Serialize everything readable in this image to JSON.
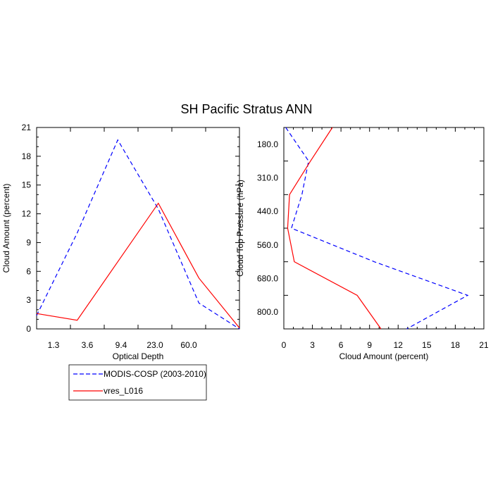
{
  "title": "SH Pacific Stratus ANN",
  "chart_data": [
    {
      "type": "line",
      "xlabel": "Optical Depth",
      "ylabel": "Cloud Amount (percent)",
      "ylim": [
        0,
        21
      ],
      "yticks": [
        "0",
        "3",
        "6",
        "9",
        "12",
        "15",
        "18",
        "21"
      ],
      "xtick_labels": [
        "1.3",
        "3.6",
        "9.4",
        "23.0",
        "60.0"
      ],
      "x_positions": [
        0,
        1,
        2,
        3,
        4,
        5,
        6
      ],
      "series": [
        {
          "name": "MODIS-COSP (2003-2010)",
          "color": "#0000ff",
          "dash": "dashed",
          "values": [
            1.4,
            10.0,
            19.7,
            12.5,
            2.7,
            0.0
          ]
        },
        {
          "name": "vres_L016",
          "color": "#ff0000",
          "dash": "solid",
          "values": [
            1.6,
            0.9,
            7.0,
            13.1,
            5.3,
            0.1
          ]
        }
      ],
      "series_x": [
        0,
        1,
        2,
        3,
        4,
        5
      ]
    },
    {
      "type": "line",
      "xlabel": "Cloud Amount (percent)",
      "ylabel": "Cloud Top Pressure (hPa)",
      "xlim": [
        0,
        21
      ],
      "xticks": [
        "0",
        "3",
        "6",
        "9",
        "12",
        "15",
        "18",
        "21"
      ],
      "ytick_labels": [
        "180.0",
        "310.0",
        "440.0",
        "560.0",
        "680.0",
        "800.0"
      ],
      "levels": [
        0,
        1,
        2,
        3,
        4,
        5,
        6
      ],
      "series": [
        {
          "name": "MODIS-COSP (2003-2010)",
          "color": "#0000ff",
          "dash": "dashed",
          "values": [
            0.2,
            2.6,
            1.9,
            0.8,
            9.5,
            19.3,
            12.9
          ]
        },
        {
          "name": "vres_L016",
          "color": "#ff0000",
          "dash": "solid",
          "values": [
            5.1,
            2.8,
            0.6,
            0.4,
            1.1,
            7.7,
            10.2
          ]
        }
      ]
    }
  ],
  "legend": {
    "entries": [
      {
        "label": "MODIS-COSP (2003-2010)",
        "color": "#0000ff",
        "dash": "dashed"
      },
      {
        "label": "vres_L016",
        "color": "#ff0000",
        "dash": "solid"
      }
    ]
  }
}
